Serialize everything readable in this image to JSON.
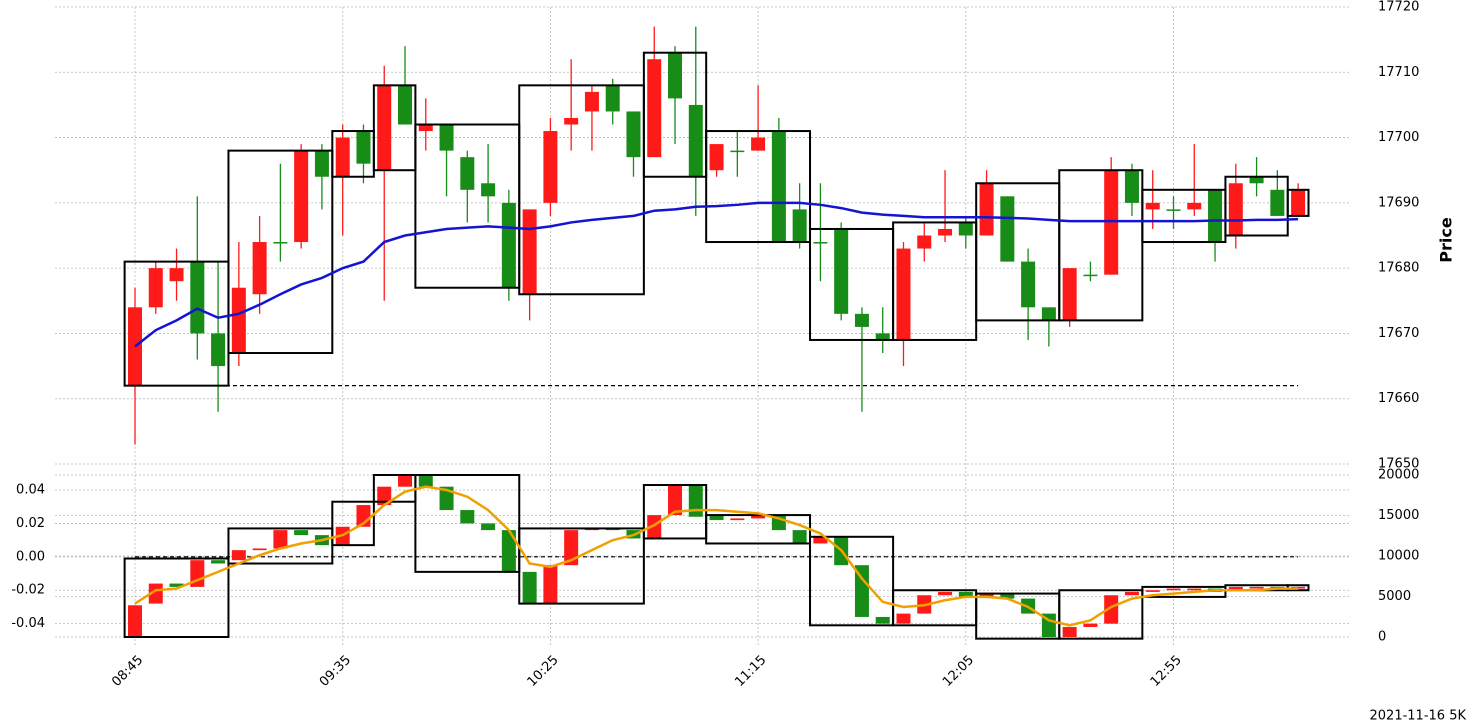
{
  "chart_data": [
    {
      "type": "candlestick",
      "categories": [
        "08:45",
        null,
        null,
        null,
        null,
        null,
        null,
        null,
        null,
        null,
        "09:35",
        null,
        null,
        null,
        null,
        null,
        null,
        null,
        null,
        null,
        "10:25",
        null,
        null,
        null,
        null,
        null,
        null,
        null,
        null,
        null,
        "11:15",
        null,
        null,
        null,
        null,
        null,
        null,
        null,
        null,
        null,
        "12:05",
        null,
        null,
        null,
        null,
        null,
        null,
        null,
        null,
        null,
        "12:55",
        null,
        null,
        null,
        null,
        null,
        null
      ],
      "open": [
        17662,
        17674,
        17678,
        17681,
        17670,
        17667,
        17676,
        17684,
        17684,
        17698,
        17694,
        17701,
        17695,
        17708,
        17701,
        17702,
        17697,
        17693,
        17690,
        17676,
        17690,
        17702,
        17704,
        17708,
        17704,
        17697,
        17713,
        17705,
        17695,
        17698,
        17698,
        17701,
        17689,
        17684,
        17686,
        17673,
        17670,
        17669,
        17683,
        17685,
        17687,
        17685,
        17691,
        17681,
        17674,
        17672,
        17679,
        17679,
        17695,
        17689,
        17689,
        17689,
        17692,
        17685,
        17694,
        17692,
        17688
      ],
      "high": [
        17677,
        17681,
        17683,
        17691,
        17681,
        17684,
        17688,
        17696,
        17699,
        17699,
        17702,
        17702,
        17711,
        17714,
        17706,
        17702,
        17698,
        17699,
        17692,
        17689,
        17703,
        17712,
        17708,
        17709,
        17704,
        17717,
        17714,
        17717,
        17699,
        17701,
        17708,
        17703,
        17693,
        17693,
        17687,
        17674,
        17674,
        17684,
        17687,
        17695,
        17688,
        17695,
        17691,
        17683,
        17674,
        17680,
        17681,
        17697,
        17696,
        17695,
        17691,
        17699,
        17692,
        17696,
        17697,
        17695,
        17693
      ],
      "low": [
        17653,
        17673,
        17675,
        17666,
        17658,
        17665,
        17673,
        17681,
        17683,
        17689,
        17685,
        17693,
        17675,
        17702,
        17698,
        17691,
        17687,
        17687,
        17675,
        17672,
        17688,
        17698,
        17698,
        17702,
        17694,
        17697,
        17699,
        17688,
        17694,
        17694,
        17698,
        17684,
        17683,
        17678,
        17672,
        17658,
        17667,
        17665,
        17681,
        17684,
        17683,
        17685,
        17681,
        17669,
        17668,
        17671,
        17678,
        17679,
        17688,
        17686,
        17686,
        17688,
        17681,
        17683,
        17691,
        17688,
        17688
      ],
      "close": [
        17674,
        17680,
        17680,
        17670,
        17665,
        17677,
        17684,
        17684,
        17698,
        17694,
        17700,
        17696,
        17708,
        17702,
        17702,
        17698,
        17692,
        17691,
        17677,
        17689,
        17701,
        17703,
        17707,
        17704,
        17697,
        17712,
        17706,
        17694,
        17699,
        17698,
        17700,
        17684,
        17684,
        17684,
        17673,
        17671,
        17669,
        17683,
        17685,
        17686,
        17685,
        17693,
        17681,
        17674,
        17672,
        17680,
        17679,
        17695,
        17690,
        17690,
        17689,
        17690,
        17684,
        17693,
        17693,
        17688,
        17692
      ],
      "boxes": {
        "first": [
          0,
          5,
          10,
          12,
          14,
          19,
          25,
          28,
          33,
          37,
          41,
          45,
          49,
          53,
          56
        ],
        "last": [
          4,
          9,
          11,
          13,
          18,
          24,
          27,
          32,
          36,
          40,
          44,
          48,
          52,
          55,
          56
        ],
        "low": [
          17662,
          17667,
          17694,
          17695,
          17677,
          17676,
          17694,
          17684,
          17669,
          17669,
          17672,
          17672,
          17684,
          17685,
          17688
        ],
        "high": [
          17681,
          17698,
          17701,
          17708,
          17702,
          17708,
          17713,
          17701,
          17686,
          17687,
          17693,
          17695,
          17692,
          17694,
          17692
        ]
      },
      "line": {
        "color": "#1414d2",
        "values": [
          17668,
          17670.5,
          17672,
          17673.8,
          17672.4,
          17673,
          17674.4,
          17676,
          17677.5,
          17678.5,
          17680,
          17681,
          17684,
          17685,
          17685.5,
          17686,
          17686.2,
          17686.4,
          17686.2,
          17686,
          17686.4,
          17687,
          17687.4,
          17687.7,
          17688,
          17688.8,
          17689,
          17689.4,
          17689.5,
          17689.7,
          17690,
          17690,
          17690,
          17689.7,
          17689.2,
          17688.5,
          17688.2,
          17688,
          17687.8,
          17687.8,
          17687.8,
          17687.8,
          17687.7,
          17687.6,
          17687.4,
          17687.2,
          17687.2,
          17687.2,
          17687.2,
          17687.2,
          17687.2,
          17687.2,
          17687.3,
          17687.3,
          17687.4,
          17687.4,
          17687.5
        ]
      },
      "hline": 17662,
      "up_color": "#ff1a1a",
      "down_color": "#178c17",
      "ylim": [
        17650,
        17720
      ],
      "yticks": [
        17650,
        17660,
        17670,
        17680,
        17690,
        17700,
        17710,
        17720
      ],
      "ylabel": "Price",
      "grid": true,
      "caption": "2021-11-16 5K"
    },
    {
      "type": "candlestick",
      "open": [
        -0.048,
        -0.028,
        -0.016,
        -0.018,
        -0.002,
        -0.002,
        0.004,
        0.005,
        0.016,
        0.013,
        0.007,
        0.018,
        0.031,
        0.042,
        0.049,
        0.042,
        0.028,
        0.02,
        0.016,
        -0.009,
        -0.028,
        -0.005,
        0.016,
        0.017,
        0.016,
        0.011,
        0.025,
        0.043,
        0.025,
        0.022,
        0.023,
        0.025,
        0.016,
        0.008,
        0.012,
        -0.005,
        -0.036,
        -0.04,
        -0.034,
        -0.023,
        -0.021,
        -0.024,
        -0.022,
        -0.025,
        -0.034,
        -0.048,
        -0.042,
        -0.04,
        -0.023,
        -0.021,
        -0.02,
        -0.02,
        -0.019,
        -0.02,
        -0.019,
        -0.018,
        -0.019
      ],
      "close": [
        -0.029,
        -0.016,
        -0.018,
        -0.002,
        -0.004,
        0.004,
        0.005,
        0.016,
        0.013,
        0.007,
        0.018,
        0.031,
        0.042,
        0.049,
        0.042,
        0.028,
        0.02,
        0.016,
        -0.009,
        -0.028,
        -0.005,
        0.016,
        0.017,
        0.016,
        0.011,
        0.025,
        0.043,
        0.024,
        0.022,
        0.023,
        0.025,
        0.016,
        0.008,
        0.012,
        -0.005,
        -0.036,
        -0.04,
        -0.034,
        -0.023,
        -0.021,
        -0.024,
        -0.022,
        -0.025,
        -0.034,
        -0.048,
        -0.042,
        -0.04,
        -0.023,
        -0.021,
        -0.02,
        -0.019,
        -0.019,
        -0.021,
        -0.018,
        -0.018,
        -0.019,
        -0.018
      ],
      "boxes": {
        "first": [
          0,
          5,
          10,
          12,
          14,
          19,
          25,
          28,
          33,
          37,
          41,
          45,
          49,
          53,
          56
        ],
        "last": [
          4,
          9,
          11,
          13,
          18,
          24,
          27,
          32,
          36,
          40,
          44,
          48,
          52,
          55,
          56
        ],
        "low": [
          -0.048,
          -0.004,
          0.007,
          0.033,
          -0.009,
          -0.028,
          0.011,
          0.008,
          -0.041,
          -0.041,
          -0.049,
          -0.049,
          -0.024,
          -0.02,
          -0.02
        ],
        "high": [
          -0.001,
          0.017,
          0.033,
          0.049,
          0.049,
          0.017,
          0.043,
          0.025,
          0.012,
          -0.02,
          -0.022,
          -0.02,
          -0.018,
          -0.017,
          -0.017
        ]
      },
      "line": {
        "color": "#f0a000",
        "values": [
          -0.028,
          -0.02,
          -0.019,
          -0.014,
          -0.009,
          -0.004,
          0.001,
          0.005,
          0.008,
          0.01,
          0.013,
          0.02,
          0.031,
          0.039,
          0.042,
          0.04,
          0.036,
          0.028,
          0.016,
          -0.004,
          -0.006,
          -0.002,
          0.004,
          0.01,
          0.013,
          0.019,
          0.027,
          0.028,
          0.028,
          0.027,
          0.026,
          0.023,
          0.019,
          0.014,
          0.004,
          -0.013,
          -0.027,
          -0.03,
          -0.029,
          -0.026,
          -0.024,
          -0.024,
          -0.025,
          -0.03,
          -0.038,
          -0.041,
          -0.038,
          -0.03,
          -0.025,
          -0.023,
          -0.022,
          -0.021,
          -0.02,
          -0.02,
          -0.02,
          -0.019,
          -0.019
        ]
      },
      "hline": 0,
      "up_color": "#ff1a1a",
      "down_color": "#178c17",
      "ylim": [
        -0.048,
        0.049
      ],
      "yticks": [
        -0.04,
        -0.02,
        {
          "value": 0,
          "label": "0.00"
        },
        0.02,
        0.04
      ],
      "y2lim": [
        0,
        20000
      ],
      "y2ticks": [
        0,
        5000,
        10000,
        15000,
        20000
      ],
      "grid": true
    }
  ]
}
